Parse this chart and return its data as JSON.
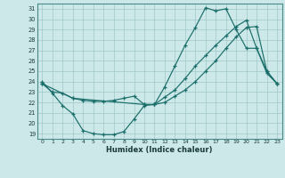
{
  "xlabel": "Humidex (Indice chaleur)",
  "background_color": "#cce8e8",
  "grid_color": "#a0c8c8",
  "line_color": "#1a6e6a",
  "xlim": [
    -0.5,
    23.5
  ],
  "ylim": [
    18.5,
    31.5
  ],
  "xticks": [
    0,
    1,
    2,
    3,
    4,
    5,
    6,
    7,
    8,
    9,
    10,
    11,
    12,
    13,
    14,
    15,
    16,
    17,
    18,
    19,
    20,
    21,
    22,
    23
  ],
  "yticks": [
    19,
    20,
    21,
    22,
    23,
    24,
    25,
    26,
    27,
    28,
    29,
    30,
    31
  ],
  "line1_x": [
    0,
    1,
    2,
    3,
    4,
    5,
    6,
    7,
    8,
    9,
    10,
    11,
    12,
    13,
    14,
    15,
    16,
    17,
    18,
    19,
    20,
    21,
    22,
    23
  ],
  "line1_y": [
    24.0,
    22.9,
    21.7,
    20.9,
    19.3,
    19.0,
    18.9,
    18.9,
    19.2,
    20.4,
    21.7,
    21.8,
    23.5,
    25.5,
    27.5,
    29.2,
    31.1,
    30.8,
    31.0,
    29.0,
    27.2,
    27.2,
    24.8,
    23.8
  ],
  "line2_x": [
    0,
    3,
    10,
    11,
    12,
    13,
    14,
    15,
    16,
    17,
    18,
    19,
    20,
    21,
    22,
    23
  ],
  "line2_y": [
    23.8,
    22.4,
    21.8,
    21.8,
    22.5,
    23.2,
    24.3,
    25.5,
    26.5,
    27.5,
    28.4,
    29.3,
    29.9,
    27.2,
    25.0,
    23.8
  ],
  "line3_x": [
    0,
    1,
    2,
    3,
    4,
    5,
    6,
    7,
    8,
    9,
    10,
    11,
    12,
    13,
    14,
    15,
    16,
    17,
    18,
    19,
    20,
    21,
    22,
    23
  ],
  "line3_y": [
    23.8,
    23.0,
    22.9,
    22.4,
    22.2,
    22.1,
    22.1,
    22.2,
    22.4,
    22.6,
    21.8,
    21.8,
    22.0,
    22.6,
    23.2,
    24.0,
    25.0,
    26.0,
    27.2,
    28.3,
    29.2,
    29.3,
    25.0,
    23.8
  ]
}
